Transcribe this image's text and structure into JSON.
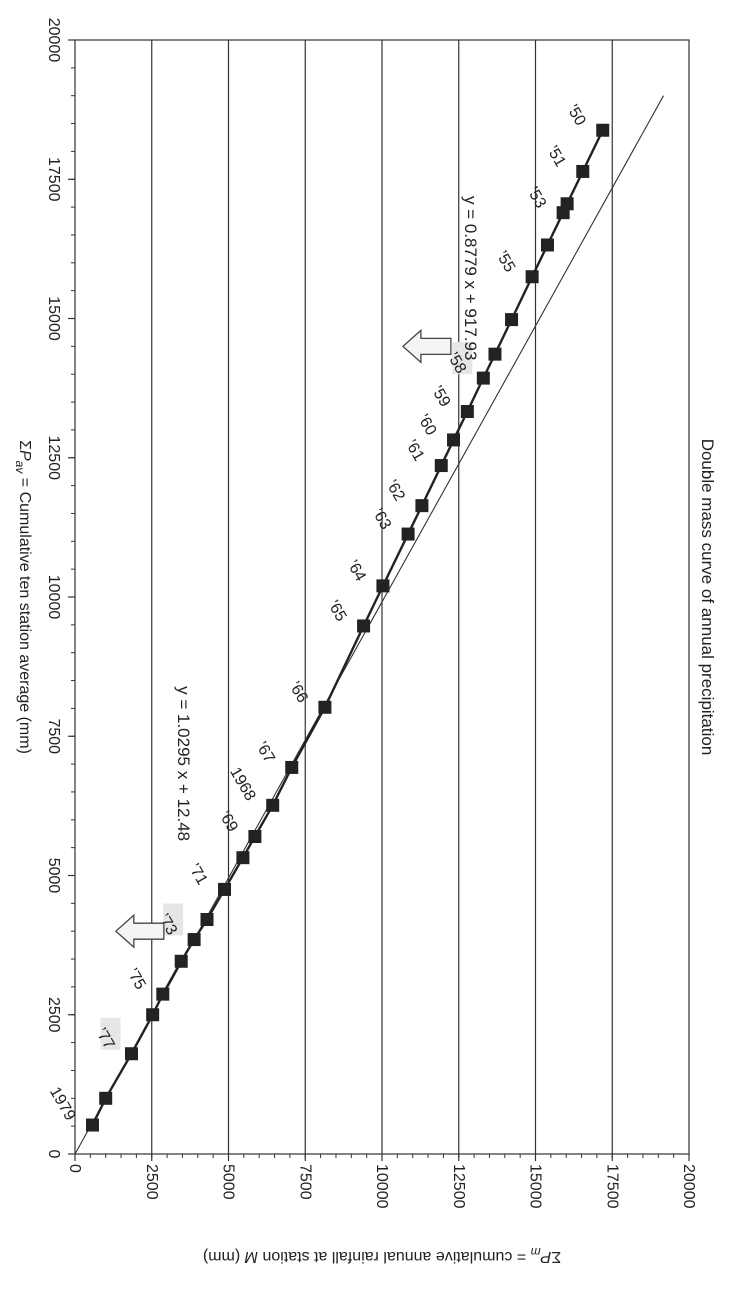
{
  "chart_data": {
    "type": "scatter",
    "title": "Double mass curve of annual precipitation",
    "xlabel": "ΣPₐᵥ = Cumulative ten station average (mm)",
    "xlabel_parts": {
      "sigma": "Σ",
      "var": "P",
      "sub": "av",
      "rest": " = Cumulative ten station average (mm)"
    },
    "ylabel": "ΣPₘ = cumulative annual rainfall at station M (mm)",
    "ylabel_parts": {
      "sigma": "Σ",
      "var": "P",
      "sub": "m",
      "rest": " = cumulative annual rainfall at station ",
      "station": "M",
      "unit": " (mm)"
    },
    "xlim": [
      0,
      20000
    ],
    "ylim": [
      0,
      20000
    ],
    "x_ticks": [
      0,
      2500,
      5000,
      7500,
      10000,
      12500,
      15000,
      17500,
      20000
    ],
    "y_ticks": [
      0,
      2500,
      5000,
      7500,
      10000,
      12500,
      15000,
      17500,
      20000
    ],
    "x_tick_labels": [
      "0",
      "2500",
      "5000",
      "7500",
      "10000",
      "12500",
      "15000",
      "17500",
      "20000"
    ],
    "y_tick_labels": [
      "0",
      "2500",
      "5000",
      "7500",
      "10000",
      "12500",
      "15000",
      "17500",
      "20000"
    ],
    "grid": "horizontal",
    "series": [
      {
        "x": [
          520,
          1000,
          1800,
          2500,
          2870,
          3460,
          3850,
          4210,
          4750,
          5320,
          5700,
          6260,
          6940,
          8020,
          9480,
          10200,
          11130,
          11640,
          12360,
          12820,
          13330,
          13930,
          14360,
          14980,
          15750,
          16320,
          16900,
          17060,
          17640,
          18380
        ],
        "y": [
          570,
          1000,
          1840,
          2530,
          2860,
          3460,
          3880,
          4300,
          4870,
          5470,
          5860,
          6440,
          7060,
          8140,
          9400,
          10030,
          10850,
          11300,
          11930,
          12330,
          12780,
          13300,
          13680,
          14220,
          14890,
          15390,
          15900,
          16030,
          16540,
          17190
        ],
        "marker": "square",
        "color": "#222222",
        "labels": [
          {
            "i": 0,
            "text": "1979"
          },
          {
            "i": 2,
            "text": "’77"
          },
          {
            "i": 4,
            "text": "’75"
          },
          {
            "i": 6,
            "text": "’73"
          },
          {
            "i": 8,
            "text": "’71"
          },
          {
            "i": 10,
            "text": "’69"
          },
          {
            "i": 11,
            "text": "1968"
          },
          {
            "i": 12,
            "text": "’67"
          },
          {
            "i": 13,
            "text": "’66"
          },
          {
            "i": 14,
            "text": "’65"
          },
          {
            "i": 15,
            "text": "’64"
          },
          {
            "i": 16,
            "text": "’63"
          },
          {
            "i": 17,
            "text": "’62"
          },
          {
            "i": 18,
            "text": "’61"
          },
          {
            "i": 19,
            "text": "’60"
          },
          {
            "i": 20,
            "text": "’59"
          },
          {
            "i": 21,
            "text": "’58"
          },
          {
            "i": 24,
            "text": "’55"
          },
          {
            "i": 26,
            "text": "’53"
          },
          {
            "i": 28,
            "text": "’51"
          },
          {
            "i": 29,
            "text": "’50"
          }
        ]
      }
    ],
    "trend_line": {
      "x": [
        0,
        19000
      ],
      "y": [
        0,
        19170
      ]
    },
    "annotations": [
      {
        "text": "y = 0.8779 x + 917.93",
        "x": 17200,
        "y": 12700,
        "arrow_at_x": 14500
      },
      {
        "text": "y = 1.0295 x + 12.48",
        "x": 8400,
        "y": 3350,
        "arrow_at_x": 4000
      }
    ],
    "highlighted_labels": [
      "’58",
      "’73",
      "’77"
    ]
  }
}
